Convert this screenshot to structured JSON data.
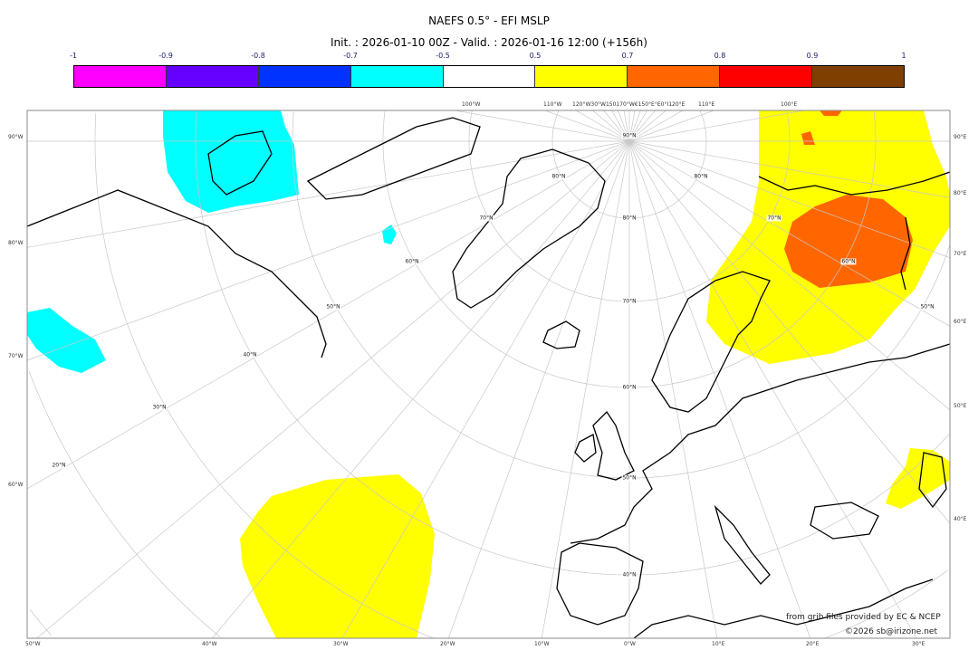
{
  "title": "NAEFS 0.5° - EFI MSLP",
  "subtitle": "Init. : 2026-01-10 00Z - Valid. : 2026-01-16 12:00 (+156h)",
  "colorbar": {
    "ticks": [
      "-1",
      "-0.9",
      "-0.8",
      "-0.7",
      "-0.5",
      "0.5",
      "0.7",
      "0.8",
      "0.9",
      "1"
    ],
    "colors": [
      "#ff00ff",
      "#6600ff",
      "#0033ff",
      "#00ffff",
      "#ffffff",
      "#ffff00",
      "#ff6600",
      "#ff0000",
      "#7f3f00"
    ]
  },
  "axes": {
    "left": [
      "90°W",
      "80°W",
      "70°W",
      "60°W"
    ],
    "right": [
      "90°E",
      "80°E",
      "70°E",
      "60°E",
      "50°E",
      "40°E"
    ],
    "bottom": [
      "50°W",
      "40°W",
      "30°W",
      "20°W",
      "10°W",
      "0°W",
      "10°E",
      "20°E",
      "30°E"
    ],
    "top": [
      "100°W",
      "110°W",
      "120°W30°W150170°W€150°E°E0°I120°E",
      "110°E",
      "100°E"
    ]
  },
  "grid_labels": [
    "90°N",
    "80°N",
    "80°N",
    "70°N",
    "70°N",
    "60°N",
    "60°N",
    "50°N",
    "50°N",
    "40°N",
    "40°N",
    "30°N",
    "20°N",
    "70°N",
    "80°N",
    "60°N",
    "50°N"
  ],
  "credits": {
    "source": "from grib files provided by EC & NCEP",
    "copyright": "©2026 sb@irizone.net"
  }
}
